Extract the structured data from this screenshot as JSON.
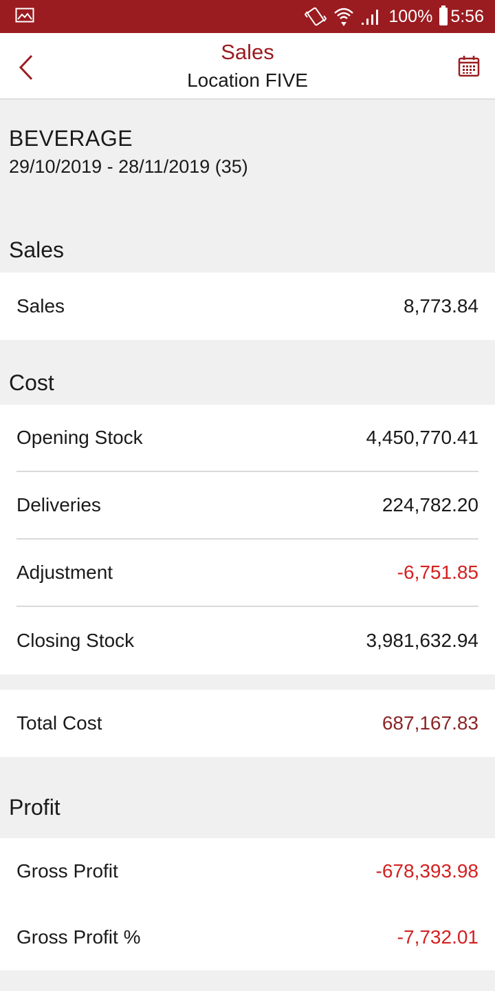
{
  "status_bar": {
    "battery": "100%",
    "time": "5:56"
  },
  "header": {
    "title": "Sales",
    "subtitle": "Location FIVE",
    "back_icon": "chevron-left-icon",
    "calendar_icon": "calendar-icon"
  },
  "info": {
    "category": "BEVERAGE",
    "period": "29/10/2019 - 28/11/2019 (35)"
  },
  "sales_section": {
    "heading": "Sales",
    "rows": [
      {
        "label": "Sales",
        "value": "8,773.84"
      }
    ]
  },
  "cost_section": {
    "heading": "Cost",
    "rows": [
      {
        "label": "Opening Stock",
        "value": "4,450,770.41"
      },
      {
        "label": "Deliveries",
        "value": "224,782.20"
      },
      {
        "label": "Adjustment",
        "value": "-6,751.85"
      },
      {
        "label": "Closing Stock",
        "value": "3,981,632.94"
      }
    ],
    "total": {
      "label": "Total Cost",
      "value": "687,167.83"
    }
  },
  "profit_section": {
    "heading": "Profit",
    "rows": [
      {
        "label": "Gross Profit",
        "value": "-678,393.98"
      },
      {
        "label": "Gross Profit %",
        "value": "-7,732.01"
      }
    ]
  },
  "colors": {
    "brand": "#9a1c20",
    "negative": "#d42020",
    "total": "#8c2525",
    "background": "#f0f0f0"
  }
}
